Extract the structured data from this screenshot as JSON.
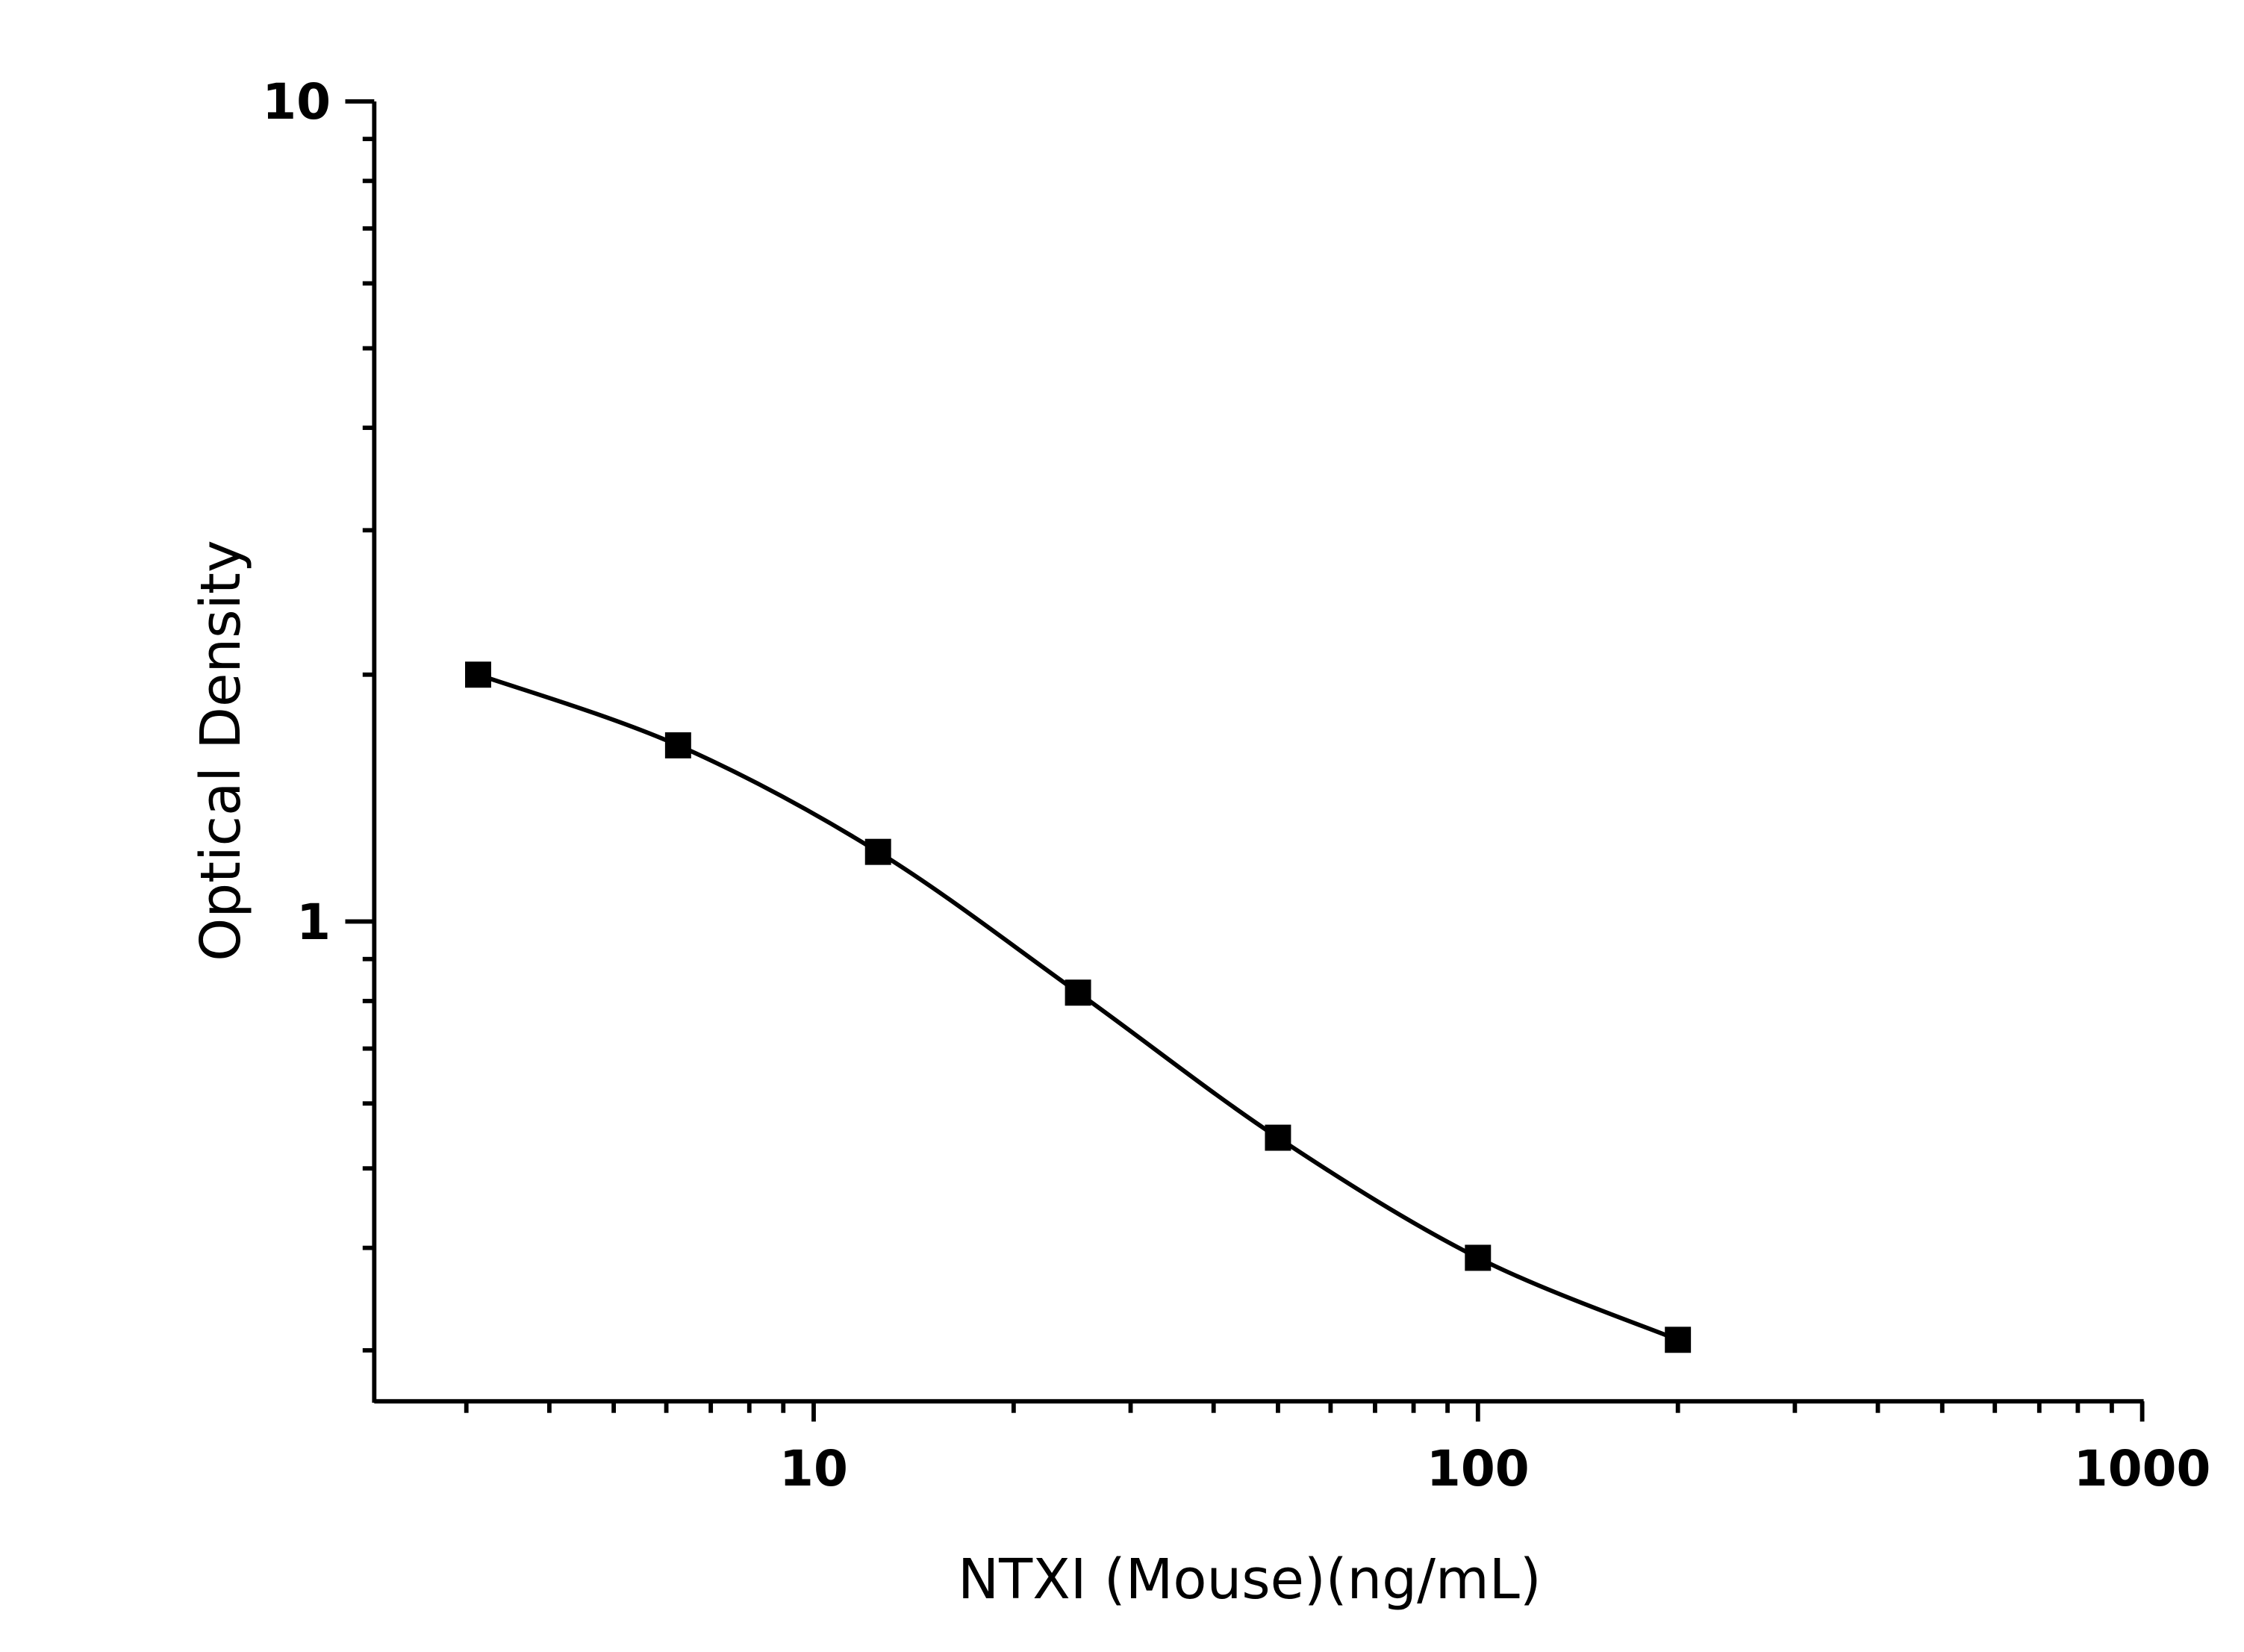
{
  "chart_data": {
    "type": "scatter",
    "title": "",
    "xlabel": "NTXI (Mouse)(ng/mL)",
    "ylabel": "Optical Density",
    "x_scale": "log",
    "y_scale": "log",
    "xlim": [
      2.18,
      1000
    ],
    "ylim": [
      0.26,
      10
    ],
    "x_ticks": [
      10,
      100,
      1000
    ],
    "x_tick_labels": [
      "10",
      "100",
      "1000"
    ],
    "y_ticks": [
      1,
      10
    ],
    "y_tick_labels": [
      "1",
      "10"
    ],
    "grid": false,
    "legend": "none",
    "marker": "square",
    "color": "#000000",
    "fit_line": true,
    "series": [
      {
        "x": [
          3.125,
          6.25,
          12.5,
          25,
          50,
          100,
          200
        ],
        "y": [
          2.0,
          1.64,
          1.216,
          0.819,
          0.545,
          0.389,
          0.309
        ]
      }
    ]
  }
}
